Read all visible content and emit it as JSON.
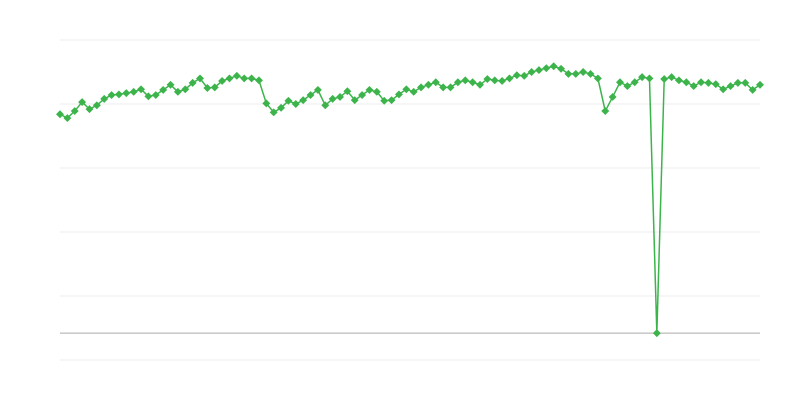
{
  "chart_data": {
    "type": "line",
    "title": "",
    "xlabel": "",
    "ylabel": "",
    "grid": true,
    "ylim": [
      -0.42,
      4.58
    ],
    "gridlines": [
      4.58,
      3.58,
      2.58,
      1.58,
      0.58,
      -0.42
    ],
    "baseline": 0,
    "colors": {
      "series": "#3cb44b",
      "grid": "#ececec",
      "baseline": "#aaaaaa"
    },
    "series": [
      {
        "values": [
          3.42,
          3.36,
          3.47,
          3.61,
          3.5,
          3.56,
          3.66,
          3.72,
          3.73,
          3.75,
          3.77,
          3.81,
          3.7,
          3.72,
          3.8,
          3.88,
          3.77,
          3.81,
          3.91,
          3.98,
          3.83,
          3.84,
          3.94,
          3.98,
          4.02,
          3.98,
          3.98,
          3.95,
          3.59,
          3.45,
          3.52,
          3.63,
          3.58,
          3.64,
          3.72,
          3.8,
          3.56,
          3.66,
          3.69,
          3.78,
          3.64,
          3.72,
          3.8,
          3.77,
          3.63,
          3.64,
          3.73,
          3.81,
          3.77,
          3.84,
          3.88,
          3.92,
          3.84,
          3.84,
          3.92,
          3.95,
          3.92,
          3.88,
          3.97,
          3.95,
          3.94,
          3.98,
          4.03,
          4.02,
          4.08,
          4.11,
          4.14,
          4.17,
          4.13,
          4.05,
          4.05,
          4.08,
          4.05,
          3.98,
          3.47,
          3.69,
          3.92,
          3.86,
          3.92,
          4.0,
          3.98,
          0,
          3.97,
          4.0,
          3.95,
          3.92,
          3.86,
          3.92,
          3.91,
          3.89,
          3.81,
          3.86,
          3.91,
          3.91,
          3.8,
          3.88
        ]
      }
    ]
  }
}
